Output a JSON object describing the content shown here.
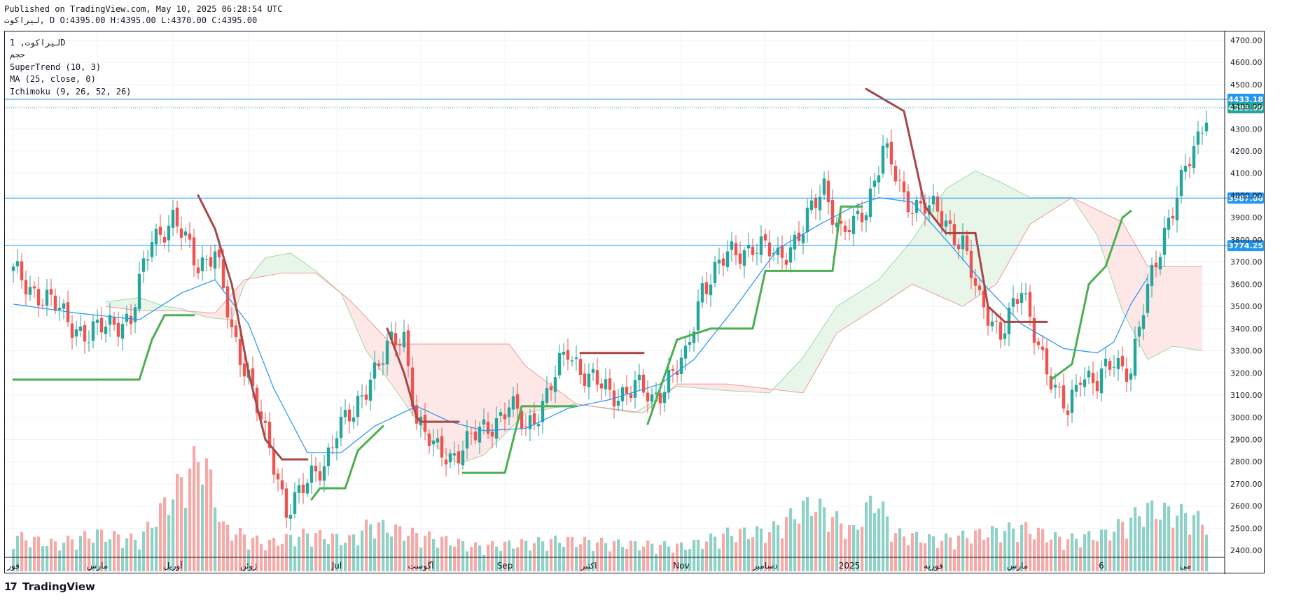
{
  "header": {
    "published": "Published on TradingView.com, May 10, 2025 06:28:54 UTC",
    "ohlc": "لیراکوت, D O:4395.00 H:4395.00 L:4370.00 C:4395.00"
  },
  "legend": {
    "symbol": "لیراکوت, 1D",
    "volume": "حجم",
    "supertrend": "SuperTrend (10, 3)",
    "ma": "MA (25, close, 0)",
    "ichimoku": "Ichimoku (9, 26, 52, 26)"
  },
  "brand": {
    "name": "TradingView"
  },
  "colors": {
    "up": "#26a69a",
    "down": "#ef5350",
    "up_vol": "#8ed1c6",
    "down_vol": "#f7a9a7",
    "supertrend_up": "#4caf50",
    "supertrend_down": "#a84747",
    "ma": "#2196f3",
    "hline": "#2196f3",
    "cloud_bull": "#e8f5e9",
    "cloud_bear": "#fde7e7",
    "price_tag": "#2196f3",
    "last_tag": "#26a69a"
  },
  "chart_data": {
    "type": "candlestick",
    "y_axis": {
      "min": 2350,
      "max": 4720,
      "ticks": [
        "4700.00",
        "4600.00",
        "4500.00",
        "4400.00",
        "4300.00",
        "4200.00",
        "4100.00",
        "4000.00",
        "3900.00",
        "3800.00",
        "3700.00",
        "3600.00",
        "3500.00",
        "3400.00",
        "3300.00",
        "3200.00",
        "3100.00",
        "3000.00",
        "2900.00",
        "2800.00",
        "2700.00",
        "2600.00",
        "2500.00",
        "2400.00"
      ]
    },
    "x_labels": [
      "فور",
      "مارس",
      "آوریل",
      "ژوئن",
      "Jul",
      "آگوست",
      "Sep",
      "اکتبر",
      "Nov",
      "دسامبر",
      "2025",
      "فوریه",
      "مارس",
      "6",
      "می"
    ],
    "x_label_index": [
      0,
      20,
      38,
      56,
      77,
      97,
      117,
      137,
      159,
      179,
      199,
      219,
      239,
      259,
      279
    ],
    "horizontal_lines": [
      {
        "price": 4433.18,
        "label": "4433.18"
      },
      {
        "price": 3987.86,
        "label": "3987.86"
      },
      {
        "price": 3774.25,
        "label": "3774.25"
      }
    ],
    "last_price": {
      "price": 4395.0,
      "label": "4395.00"
    },
    "close_anchors": [
      [
        0,
        3650
      ],
      [
        6,
        3560
      ],
      [
        12,
        3460
      ],
      [
        18,
        3360
      ],
      [
        24,
        3440
      ],
      [
        28,
        3430
      ],
      [
        33,
        3820
      ],
      [
        38,
        3880
      ],
      [
        44,
        3700
      ],
      [
        48,
        3740
      ],
      [
        52,
        3380
      ],
      [
        56,
        3200
      ],
      [
        60,
        2900
      ],
      [
        65,
        2600
      ],
      [
        70,
        2690
      ],
      [
        74,
        2800
      ],
      [
        77,
        2950
      ],
      [
        81,
        3000
      ],
      [
        85,
        3200
      ],
      [
        90,
        3320
      ],
      [
        93,
        3360
      ],
      [
        96,
        3000
      ],
      [
        100,
        2850
      ],
      [
        104,
        2830
      ],
      [
        108,
        2880
      ],
      [
        113,
        2960
      ],
      [
        118,
        3050
      ],
      [
        122,
        2950
      ],
      [
        127,
        3100
      ],
      [
        132,
        3300
      ],
      [
        137,
        3180
      ],
      [
        142,
        3100
      ],
      [
        148,
        3140
      ],
      [
        152,
        3070
      ],
      [
        156,
        3190
      ],
      [
        160,
        3250
      ],
      [
        164,
        3600
      ],
      [
        170,
        3720
      ],
      [
        176,
        3780
      ],
      [
        182,
        3720
      ],
      [
        188,
        3840
      ],
      [
        193,
        4050
      ],
      [
        197,
        3830
      ],
      [
        200,
        3850
      ],
      [
        203,
        3950
      ],
      [
        207,
        4220
      ],
      [
        212,
        3980
      ],
      [
        217,
        3960
      ],
      [
        222,
        3870
      ],
      [
        226,
        3800
      ],
      [
        230,
        3500
      ],
      [
        235,
        3400
      ],
      [
        240,
        3550
      ],
      [
        244,
        3350
      ],
      [
        248,
        3100
      ],
      [
        251,
        3020
      ],
      [
        254,
        3220
      ],
      [
        258,
        3140
      ],
      [
        262,
        3260
      ],
      [
        266,
        3220
      ],
      [
        270,
        3560
      ],
      [
        274,
        3850
      ],
      [
        279,
        4100
      ],
      [
        282,
        4250
      ],
      [
        284,
        4395
      ]
    ],
    "volume_anchors": [
      [
        0,
        0.28
      ],
      [
        10,
        0.22
      ],
      [
        20,
        0.3
      ],
      [
        30,
        0.25
      ],
      [
        45,
        0.95
      ],
      [
        50,
        0.35
      ],
      [
        60,
        0.22
      ],
      [
        70,
        0.3
      ],
      [
        80,
        0.25
      ],
      [
        85,
        0.38
      ],
      [
        95,
        0.3
      ],
      [
        110,
        0.2
      ],
      [
        120,
        0.22
      ],
      [
        130,
        0.25
      ],
      [
        145,
        0.22
      ],
      [
        160,
        0.2
      ],
      [
        170,
        0.3
      ],
      [
        180,
        0.32
      ],
      [
        190,
        0.55
      ],
      [
        200,
        0.32
      ],
      [
        205,
        0.6
      ],
      [
        210,
        0.3
      ],
      [
        220,
        0.25
      ],
      [
        230,
        0.3
      ],
      [
        240,
        0.35
      ],
      [
        250,
        0.25
      ],
      [
        260,
        0.3
      ],
      [
        270,
        0.5
      ],
      [
        280,
        0.45
      ],
      [
        284,
        0.38
      ]
    ],
    "supertrend": [
      [
        0,
        3170,
        "up"
      ],
      [
        30,
        3170,
        "up"
      ],
      [
        33,
        3350,
        "up"
      ],
      [
        36,
        3460,
        "up"
      ],
      [
        43,
        3460,
        "up"
      ],
      [
        44,
        4000,
        "down"
      ],
      [
        48,
        3850,
        "down"
      ],
      [
        52,
        3600,
        "down"
      ],
      [
        56,
        3200,
        "down"
      ],
      [
        60,
        2900,
        "down"
      ],
      [
        64,
        2810,
        "down"
      ],
      [
        70,
        2810,
        "down"
      ],
      [
        71,
        2630,
        "up"
      ],
      [
        73,
        2680,
        "up"
      ],
      [
        79,
        2680,
        "up"
      ],
      [
        82,
        2850,
        "up"
      ],
      [
        88,
        2960,
        "up"
      ],
      [
        89,
        3400,
        "down"
      ],
      [
        93,
        3200,
        "down"
      ],
      [
        96,
        3000,
        "down"
      ],
      [
        97,
        2980,
        "down"
      ],
      [
        106,
        2980,
        "down"
      ],
      [
        107,
        2750,
        "up"
      ],
      [
        117,
        2750,
        "up"
      ],
      [
        121,
        3050,
        "up"
      ],
      [
        134,
        3050,
        "up"
      ],
      [
        135,
        3290,
        "down"
      ],
      [
        150,
        3290,
        "down"
      ],
      [
        151,
        2970,
        "up"
      ],
      [
        158,
        3350,
        "up"
      ],
      [
        166,
        3400,
        "up"
      ],
      [
        176,
        3400,
        "up"
      ],
      [
        179,
        3660,
        "up"
      ],
      [
        195,
        3660,
        "up"
      ],
      [
        197,
        3950,
        "up"
      ],
      [
        202,
        3950,
        "up"
      ],
      [
        203,
        4480,
        "down"
      ],
      [
        212,
        4380,
        "down"
      ],
      [
        217,
        3950,
        "down"
      ],
      [
        222,
        3830,
        "down"
      ],
      [
        229,
        3830,
        "down"
      ],
      [
        232,
        3500,
        "down"
      ],
      [
        236,
        3430,
        "down"
      ],
      [
        246,
        3430,
        "down"
      ],
      [
        247,
        3170,
        "up"
      ],
      [
        252,
        3240,
        "up"
      ],
      [
        256,
        3600,
        "up"
      ],
      [
        260,
        3680,
        "up"
      ],
      [
        264,
        3900,
        "up"
      ],
      [
        266,
        3930,
        "up"
      ]
    ],
    "moving_average": [
      [
        0,
        3510
      ],
      [
        15,
        3470
      ],
      [
        30,
        3440
      ],
      [
        40,
        3560
      ],
      [
        48,
        3620
      ],
      [
        56,
        3420
      ],
      [
        62,
        3130
      ],
      [
        70,
        2840
      ],
      [
        78,
        2840
      ],
      [
        86,
        2960
      ],
      [
        96,
        3050
      ],
      [
        104,
        2980
      ],
      [
        112,
        2940
      ],
      [
        122,
        2950
      ],
      [
        132,
        3040
      ],
      [
        142,
        3080
      ],
      [
        154,
        3150
      ],
      [
        162,
        3260
      ],
      [
        172,
        3500
      ],
      [
        182,
        3760
      ],
      [
        192,
        3870
      ],
      [
        200,
        3950
      ],
      [
        206,
        3990
      ],
      [
        214,
        3970
      ],
      [
        222,
        3800
      ],
      [
        232,
        3580
      ],
      [
        240,
        3420
      ],
      [
        250,
        3310
      ],
      [
        258,
        3290
      ],
      [
        262,
        3340
      ],
      [
        266,
        3510
      ],
      [
        270,
        3630
      ]
    ],
    "cloud_span_a": [
      [
        22,
        3520
      ],
      [
        30,
        3540
      ],
      [
        36,
        3500
      ],
      [
        40,
        3490
      ],
      [
        46,
        3450
      ],
      [
        52,
        3440
      ],
      [
        55,
        3600
      ],
      [
        60,
        3720
      ],
      [
        66,
        3740
      ],
      [
        72,
        3660
      ],
      [
        78,
        3560
      ],
      [
        84,
        3300
      ],
      [
        90,
        3150
      ],
      [
        100,
        2880
      ],
      [
        106,
        2790
      ],
      [
        112,
        2830
      ],
      [
        122,
        3020
      ],
      [
        134,
        3060
      ],
      [
        148,
        3020
      ],
      [
        158,
        3140
      ],
      [
        170,
        3120
      ],
      [
        180,
        3110
      ],
      [
        188,
        3270
      ],
      [
        196,
        3500
      ],
      [
        206,
        3620
      ],
      [
        214,
        3800
      ],
      [
        222,
        4030
      ],
      [
        229,
        4110
      ],
      [
        235,
        4060
      ],
      [
        242,
        3990
      ],
      [
        252,
        3990
      ],
      [
        258,
        3820
      ],
      [
        264,
        3480
      ],
      [
        270,
        3260
      ],
      [
        276,
        3320
      ],
      [
        283,
        3300
      ]
    ],
    "cloud_span_b": [
      [
        22,
        3500
      ],
      [
        30,
        3480
      ],
      [
        40,
        3480
      ],
      [
        48,
        3470
      ],
      [
        55,
        3620
      ],
      [
        64,
        3650
      ],
      [
        72,
        3650
      ],
      [
        80,
        3530
      ],
      [
        90,
        3330
      ],
      [
        106,
        3330
      ],
      [
        118,
        3330
      ],
      [
        122,
        3230
      ],
      [
        134,
        3060
      ],
      [
        150,
        3020
      ],
      [
        158,
        3150
      ],
      [
        170,
        3150
      ],
      [
        188,
        3110
      ],
      [
        196,
        3380
      ],
      [
        206,
        3500
      ],
      [
        214,
        3600
      ],
      [
        226,
        3500
      ],
      [
        234,
        3600
      ],
      [
        242,
        3870
      ],
      [
        252,
        3990
      ],
      [
        264,
        3880
      ],
      [
        270,
        3680
      ],
      [
        283,
        3680
      ]
    ]
  }
}
